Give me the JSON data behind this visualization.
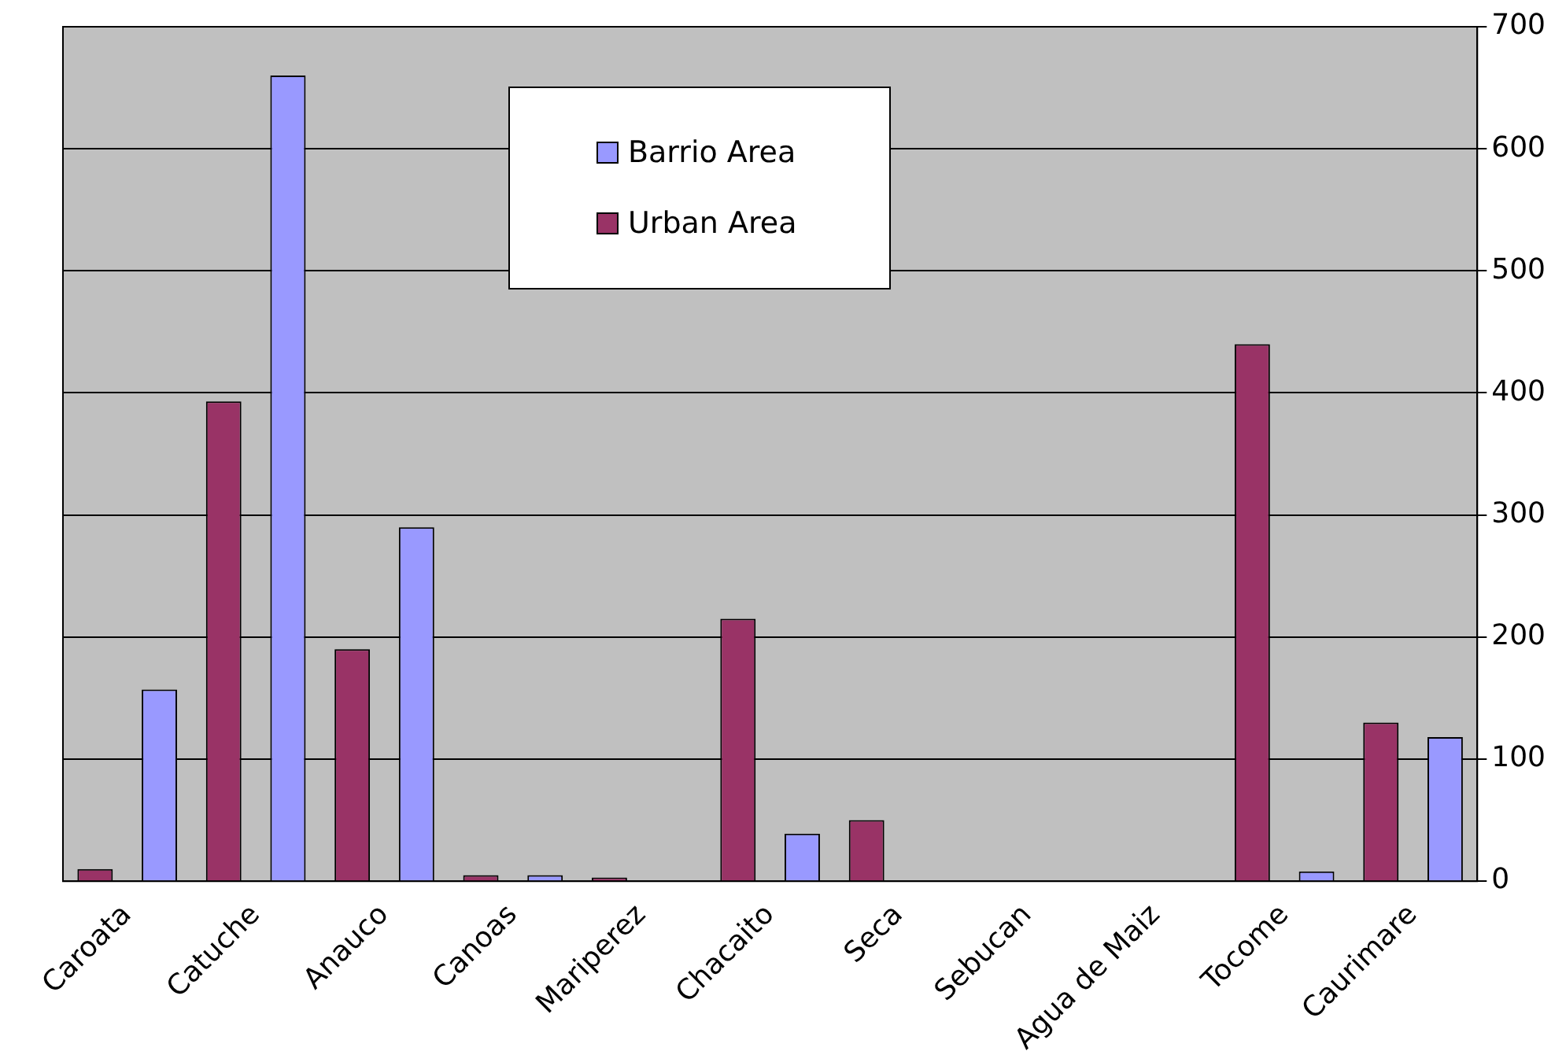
{
  "chart_data": {
    "type": "bar",
    "categories": [
      "Caroata",
      "Catuche",
      "Anauco",
      "Canoas",
      "Mariperez",
      "Chacaito",
      "Seca",
      "Sebucan",
      "Agua de Maiz",
      "Tocome",
      "Caurimare"
    ],
    "series": [
      {
        "name": "Urban Area",
        "color": "#993366",
        "values": [
          10,
          393,
          190,
          5,
          3,
          215,
          50,
          0,
          0,
          440,
          130
        ]
      },
      {
        "name": "Barrio Area",
        "color": "#9999ff",
        "values": [
          157,
          660,
          290,
          5,
          0,
          39,
          0,
          0,
          0,
          8,
          118
        ]
      }
    ],
    "ylim": [
      0,
      700
    ],
    "yticks": [
      0,
      100,
      200,
      300,
      400,
      500,
      600,
      700
    ],
    "grid": "y",
    "legend": "top"
  }
}
